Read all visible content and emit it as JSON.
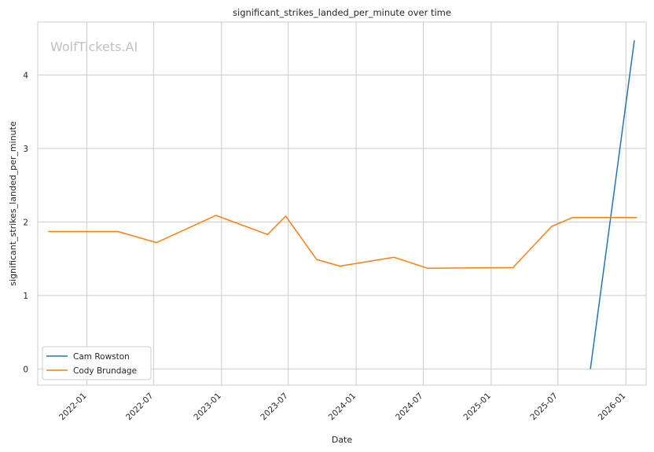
{
  "watermark": "WolfTickets.AI",
  "chart_data": {
    "type": "line",
    "title": "significant_strikes_landed_per_minute over time",
    "xlabel": "Date",
    "ylabel": "significant_strikes_landed_per_minute",
    "x_tick_labels": [
      "2022-01",
      "2022-07",
      "2023-01",
      "2023-07",
      "2024-01",
      "2024-07",
      "2025-01",
      "2025-07",
      "2026-01"
    ],
    "y_ticks": [
      0,
      1,
      2,
      3,
      4
    ],
    "xlim": [
      "2021-08-21",
      "2026-02-25"
    ],
    "ylim": [
      -0.22,
      4.72
    ],
    "grid": true,
    "legend_position": "lower-left",
    "series": [
      {
        "name": "Cam Rowston",
        "color": "#1f77b4",
        "points": [
          {
            "x": "2025-09-27",
            "y": 0.0
          },
          {
            "x": "2026-01-24",
            "y": 4.47
          }
        ]
      },
      {
        "name": "Cody Brundage",
        "color": "#ff7f0e",
        "points": [
          {
            "x": "2021-09-18",
            "y": 1.87
          },
          {
            "x": "2022-03-26",
            "y": 1.87
          },
          {
            "x": "2022-07-09",
            "y": 1.72
          },
          {
            "x": "2022-12-17",
            "y": 2.09
          },
          {
            "x": "2023-05-06",
            "y": 1.83
          },
          {
            "x": "2023-06-24",
            "y": 2.08
          },
          {
            "x": "2023-09-16",
            "y": 1.49
          },
          {
            "x": "2023-11-18",
            "y": 1.4
          },
          {
            "x": "2024-04-13",
            "y": 1.52
          },
          {
            "x": "2024-07-13",
            "y": 1.37
          },
          {
            "x": "2025-03-01",
            "y": 1.38
          },
          {
            "x": "2025-06-14",
            "y": 1.94
          },
          {
            "x": "2025-08-09",
            "y": 2.06
          },
          {
            "x": "2026-01-31",
            "y": 2.06
          }
        ]
      }
    ]
  }
}
